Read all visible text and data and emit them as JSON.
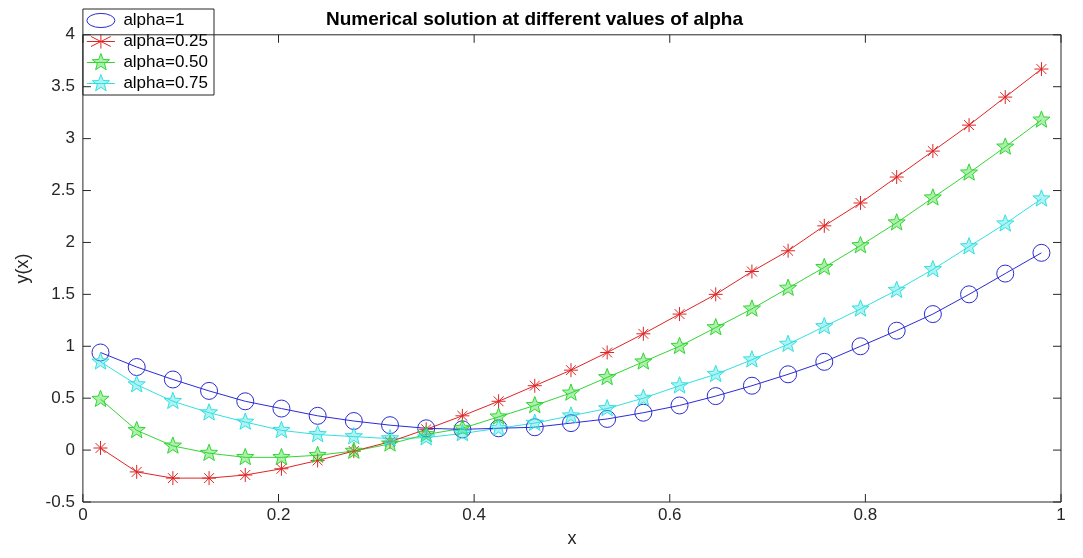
{
  "chart_data": {
    "type": "line",
    "title": "Numerical solution at different values of alpha",
    "xlabel": "x",
    "ylabel": "y(x)",
    "x": [
      0.018,
      0.055,
      0.092,
      0.129,
      0.166,
      0.203,
      0.24,
      0.277,
      0.314,
      0.351,
      0.388,
      0.425,
      0.462,
      0.499,
      0.536,
      0.573,
      0.61,
      0.647,
      0.684,
      0.721,
      0.758,
      0.795,
      0.832,
      0.869,
      0.906,
      0.943,
      0.98
    ],
    "series": [
      {
        "name": "alpha=1",
        "color": "#2b2bd6",
        "marker": "circle",
        "values": [
          0.94,
          0.8,
          0.68,
          0.57,
          0.47,
          0.4,
          0.33,
          0.28,
          0.24,
          0.21,
          0.2,
          0.21,
          0.22,
          0.26,
          0.3,
          0.36,
          0.43,
          0.52,
          0.62,
          0.73,
          0.85,
          1.0,
          1.15,
          1.31,
          1.5,
          1.7,
          1.9
        ]
      },
      {
        "name": "alpha=0.25",
        "color": "#e02424",
        "marker": "cross",
        "values": [
          0.02,
          -0.21,
          -0.27,
          -0.27,
          -0.24,
          -0.18,
          -0.1,
          -0.01,
          0.08,
          0.2,
          0.33,
          0.47,
          0.62,
          0.77,
          0.94,
          1.12,
          1.31,
          1.5,
          1.72,
          1.92,
          2.16,
          2.38,
          2.63,
          2.88,
          3.13,
          3.4,
          3.67
        ]
      },
      {
        "name": "alpha=0.50",
        "color": "#33d633",
        "marker": "star",
        "values": [
          0.49,
          0.19,
          0.04,
          -0.03,
          -0.07,
          -0.07,
          -0.05,
          -0.01,
          0.06,
          0.15,
          0.21,
          0.32,
          0.43,
          0.55,
          0.7,
          0.85,
          1.0,
          1.18,
          1.36,
          1.56,
          1.76,
          1.97,
          2.19,
          2.43,
          2.67,
          2.92,
          3.18
        ]
      },
      {
        "name": "alpha=0.75",
        "color": "#33e0e0",
        "marker": "star",
        "values": [
          0.85,
          0.63,
          0.47,
          0.36,
          0.27,
          0.19,
          0.15,
          0.13,
          0.11,
          0.12,
          0.16,
          0.21,
          0.26,
          0.33,
          0.4,
          0.5,
          0.62,
          0.73,
          0.87,
          1.02,
          1.19,
          1.36,
          1.54,
          1.74,
          1.96,
          2.18,
          2.42
        ]
      }
    ],
    "xlim": [
      0,
      1
    ],
    "xticks": [
      0,
      0.2,
      0.4,
      0.6,
      0.8,
      1
    ],
    "ylim": [
      -0.5,
      4
    ],
    "yticks": [
      -0.5,
      0,
      0.5,
      1,
      1.5,
      2,
      2.5,
      3,
      3.5,
      4
    ],
    "grid": false,
    "legend": "top left",
    "line_style": "solid"
  }
}
